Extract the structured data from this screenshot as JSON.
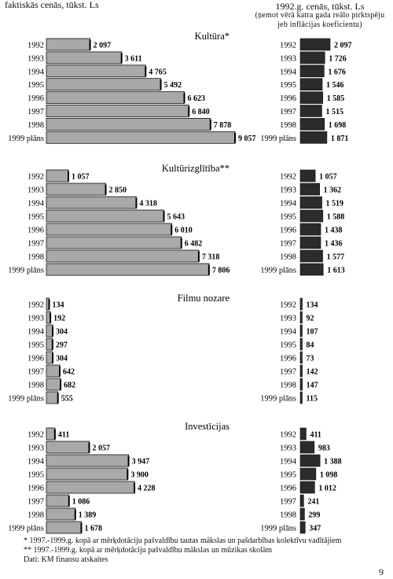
{
  "header": {
    "left": "faktiskās cenās, tūkst. Ls",
    "right_line1": "1992.g. cenās, tūkst. Ls",
    "right_line2": "(ņemot vērā katra gada reālo pirktspēju",
    "right_line3": "jeb inflācijas koeficientu)"
  },
  "chart_data": [
    {
      "type": "bar",
      "title": "Kultūra*",
      "categories": [
        "1992",
        "1993",
        "1994",
        "1995",
        "1996",
        "1997",
        "1998",
        "1999 plāns"
      ],
      "series": [
        {
          "unit": "faktiskās cenās, tūkst. Ls",
          "values": [
            2097,
            3611,
            4765,
            5492,
            6623,
            6840,
            7878,
            9057
          ],
          "labels": [
            "2 097",
            "3 611",
            "4 765",
            "5 492",
            "6 623",
            "6 840",
            "7 878",
            "9 057"
          ]
        },
        {
          "unit": "1992.g. cenās, tūkst. Ls",
          "values": [
            2097,
            1726,
            1676,
            1546,
            1585,
            1515,
            1698,
            1871
          ],
          "labels": [
            "2 097",
            "1 726",
            "1 676",
            "1 546",
            "1 585",
            "1 515",
            "1 698",
            "1 871"
          ]
        }
      ]
    },
    {
      "type": "bar",
      "title": "Kultūrizglītība**",
      "categories": [
        "1992",
        "1993",
        "1994",
        "1995",
        "1996",
        "1997",
        "1998",
        "1999 plāns"
      ],
      "series": [
        {
          "unit": "faktiskās cenās, tūkst. Ls",
          "values": [
            1057,
            2850,
            4318,
            5643,
            6010,
            6482,
            7318,
            7806
          ],
          "labels": [
            "1 057",
            "2 850",
            "4 318",
            "5 643",
            "6 010",
            "6 482",
            "7 318",
            "7 806"
          ]
        },
        {
          "unit": "1992.g. cenās, tūkst. Ls",
          "values": [
            1057,
            1362,
            1519,
            1588,
            1438,
            1436,
            1577,
            1613
          ],
          "labels": [
            "1 057",
            "1 362",
            "1 519",
            "1 588",
            "1 438",
            "1 436",
            "1 577",
            "1 613"
          ]
        }
      ]
    },
    {
      "type": "bar",
      "title": "Filmu nozare",
      "categories": [
        "1992",
        "1993",
        "1994",
        "1995",
        "1996",
        "1997",
        "1998",
        "1999 plāns"
      ],
      "series": [
        {
          "unit": "faktiskās cenās, tūkst. Ls",
          "values": [
            134,
            192,
            304,
            297,
            304,
            642,
            682,
            555
          ],
          "labels": [
            "134",
            "192",
            "304",
            "297",
            "304",
            "642",
            "682",
            "555"
          ]
        },
        {
          "unit": "1992.g. cenās, tūkst. Ls",
          "values": [
            134,
            92,
            107,
            84,
            73,
            142,
            147,
            115
          ],
          "labels": [
            "134",
            "92",
            "107",
            "84",
            "73",
            "142",
            "147",
            "115"
          ]
        }
      ]
    },
    {
      "type": "bar",
      "title": "Investīcijas",
      "categories": [
        "1992",
        "1993",
        "1994",
        "1995",
        "1996",
        "1997",
        "1998",
        "1999 plāns"
      ],
      "series": [
        {
          "unit": "faktiskās cenās, tūkst. Ls",
          "values": [
            411,
            2057,
            3947,
            3900,
            4228,
            1086,
            1389,
            1678
          ],
          "labels": [
            "411",
            "2 057",
            "3 947",
            "3 900",
            "4 228",
            "1 086",
            "1 389",
            "1 678"
          ]
        },
        {
          "unit": "1992.g. cenās, tūkst. Ls",
          "values": [
            411,
            983,
            1388,
            1098,
            1012,
            241,
            299,
            347
          ],
          "labels": [
            "411",
            "983",
            "1 388",
            "1 098",
            "1 012",
            "241",
            "299",
            "347"
          ]
        }
      ]
    }
  ],
  "footnotes": {
    "note1": "* 1997.-1999.g. kopā ar mērķdotāciju pašvaldību tautas mākslas un pašdarbības kolektīvu vadītājiem",
    "note2": "** 1997.-1999.g. kopā ar mērķdotāciju pašvaldību mākslas un mūzikas skolām",
    "source": "Dati: KM finansu atskaites"
  },
  "page_number": "9",
  "colors": {
    "left_bar": "#a9a9a9",
    "right_bar": "#2b2b2b",
    "edge": "#111111"
  }
}
